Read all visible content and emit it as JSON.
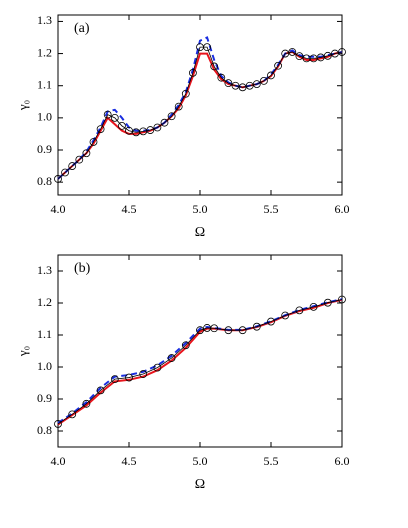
{
  "chart_data": [
    {
      "type": "line",
      "panel_label": "(a)",
      "xlabel": "Ω",
      "ylabel": "γ₀",
      "x": [
        4.0,
        4.05,
        4.1,
        4.15,
        4.2,
        4.25,
        4.3,
        4.35,
        4.4,
        4.45,
        4.5,
        4.55,
        4.6,
        4.65,
        4.7,
        4.75,
        4.8,
        4.85,
        4.9,
        4.95,
        5.0,
        5.05,
        5.1,
        5.15,
        5.2,
        5.25,
        5.3,
        5.35,
        5.4,
        5.45,
        5.5,
        5.55,
        5.6,
        5.65,
        5.7,
        5.75,
        5.8,
        5.85,
        5.9,
        5.95,
        6.0
      ],
      "xlim": [
        4.0,
        6.0
      ],
      "ylim": [
        0.76,
        1.32
      ],
      "xticks": [
        {
          "value": 4,
          "label": "4.0"
        },
        4.5,
        {
          "value": 5,
          "label": "5.0"
        },
        5.5,
        {
          "value": 6,
          "label": "6.0"
        }
      ],
      "yticks": [
        0.8,
        0.9,
        {
          "value": 1,
          "label": "1.0"
        },
        1.1,
        1.2,
        1.3
      ],
      "series": [
        {
          "color": "#e8141c",
          "dash": false,
          "marker": "none",
          "values": [
            0.81,
            0.83,
            0.85,
            0.87,
            0.89,
            0.92,
            0.96,
            1.0,
            0.98,
            0.96,
            0.95,
            0.95,
            0.955,
            0.96,
            0.97,
            0.985,
            1.005,
            1.03,
            1.07,
            1.13,
            1.2,
            1.2,
            1.15,
            1.12,
            1.105,
            1.1,
            1.095,
            1.1,
            1.105,
            1.115,
            1.13,
            1.16,
            1.2,
            1.205,
            1.19,
            1.18,
            1.18,
            1.185,
            1.19,
            1.2,
            1.205
          ]
        },
        {
          "color": "#1a2ee0",
          "dash": true,
          "marker": "none",
          "values": [
            0.81,
            0.83,
            0.85,
            0.87,
            0.895,
            0.93,
            0.97,
            1.02,
            1.025,
            1.0,
            0.97,
            0.96,
            0.96,
            0.962,
            0.97,
            0.985,
            1.01,
            1.04,
            1.08,
            1.15,
            1.24,
            1.25,
            1.18,
            1.13,
            1.11,
            1.1,
            1.095,
            1.1,
            1.105,
            1.115,
            1.135,
            1.165,
            1.2,
            1.21,
            1.195,
            1.19,
            1.19,
            1.19,
            1.195,
            1.2,
            1.205
          ]
        },
        {
          "color": "#000000",
          "dash": false,
          "marker": "circle",
          "values": [
            0.81,
            0.83,
            0.85,
            0.87,
            0.89,
            0.925,
            0.965,
            1.01,
            1.0,
            0.975,
            0.96,
            0.955,
            0.958,
            0.962,
            0.97,
            0.985,
            1.005,
            1.035,
            1.075,
            1.14,
            1.22,
            1.22,
            1.16,
            1.125,
            1.108,
            1.1,
            1.095,
            1.1,
            1.105,
            1.115,
            1.132,
            1.162,
            1.2,
            1.205,
            1.192,
            1.185,
            1.185,
            1.188,
            1.193,
            1.2,
            1.205
          ]
        }
      ]
    },
    {
      "type": "line",
      "panel_label": "(b)",
      "xlabel": "Ω",
      "ylabel": "γ₀",
      "x": [
        4.0,
        4.1,
        4.2,
        4.3,
        4.4,
        4.5,
        4.6,
        4.7,
        4.8,
        4.9,
        5.0,
        5.05,
        5.1,
        5.2,
        5.3,
        5.4,
        5.5,
        5.6,
        5.7,
        5.8,
        5.9,
        6.0
      ],
      "xlim": [
        4.0,
        6.0
      ],
      "ylim": [
        0.75,
        1.35
      ],
      "xticks": [
        {
          "value": 4,
          "label": "4.0"
        },
        4.5,
        {
          "value": 5,
          "label": "5.0"
        },
        5.5,
        {
          "value": 6,
          "label": "6.0"
        }
      ],
      "yticks": [
        0.8,
        0.9,
        {
          "value": 1,
          "label": "1.0"
        },
        1.1,
        1.2,
        1.3
      ],
      "series": [
        {
          "color": "#e8141c",
          "dash": false,
          "marker": "none",
          "values": [
            0.82,
            0.85,
            0.88,
            0.92,
            0.955,
            0.96,
            0.97,
            0.99,
            1.02,
            1.06,
            1.11,
            1.12,
            1.12,
            1.115,
            1.115,
            1.125,
            1.14,
            1.16,
            1.175,
            1.185,
            1.2,
            1.21
          ]
        },
        {
          "color": "#1a2ee0",
          "dash": true,
          "marker": "none",
          "values": [
            0.825,
            0.855,
            0.89,
            0.935,
            0.97,
            0.975,
            0.985,
            1.005,
            1.035,
            1.075,
            1.12,
            1.125,
            1.122,
            1.116,
            1.116,
            1.127,
            1.143,
            1.162,
            1.178,
            1.19,
            1.202,
            1.212
          ]
        },
        {
          "color": "#000000",
          "dash": false,
          "marker": "circle",
          "values": [
            0.822,
            0.852,
            0.885,
            0.927,
            0.962,
            0.967,
            0.978,
            0.998,
            1.028,
            1.068,
            1.115,
            1.122,
            1.121,
            1.115,
            1.115,
            1.126,
            1.142,
            1.161,
            1.177,
            1.188,
            1.201,
            1.211
          ]
        }
      ]
    }
  ]
}
